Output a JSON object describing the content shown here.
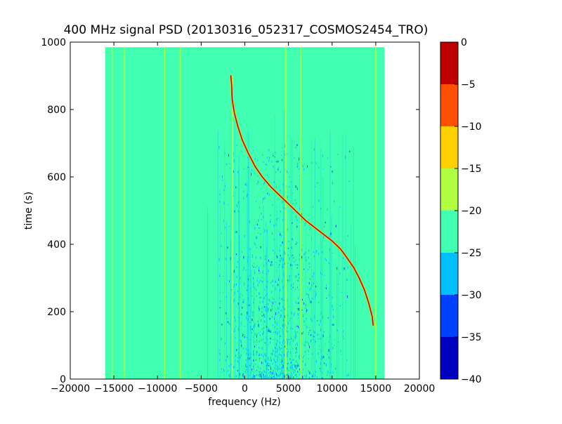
{
  "chart_data": {
    "type": "heatmap",
    "title": "400 MHz signal PSD (20130316_052317_COSMOS2454_TRO)",
    "xlabel": "frequency (Hz)",
    "ylabel": "time (s)",
    "xlim": [
      -20000,
      20000
    ],
    "ylim": [
      0,
      1000
    ],
    "data_extent": {
      "x": [
        -16000,
        16000
      ],
      "y": [
        0,
        985
      ]
    },
    "x_ticks": [
      -20000,
      -15000,
      -10000,
      -5000,
      0,
      5000,
      10000,
      15000,
      20000
    ],
    "x_tick_labels": [
      "−20000",
      "−15000",
      "−10000",
      "−5000",
      "0",
      "5000",
      "10000",
      "15000",
      "20000"
    ],
    "y_ticks": [
      0,
      200,
      400,
      600,
      800,
      1000
    ],
    "y_tick_labels": [
      "0",
      "200",
      "400",
      "600",
      "800",
      "1000"
    ],
    "background_level": -22,
    "colorbar": {
      "levels": [
        -40,
        -35,
        -30,
        -25,
        -20,
        -15,
        -10,
        -5,
        0
      ],
      "tick_labels": [
        "−40",
        "−35",
        "−30",
        "−25",
        "−20",
        "−15",
        "−10",
        "−5",
        "0"
      ],
      "colors": [
        "#0000c0",
        "#0040ff",
        "#00c0ff",
        "#40ffb0",
        "#b0ff40",
        "#ffd000",
        "#ff5000",
        "#c00000"
      ]
    },
    "vertical_lines": [
      {
        "x": -15200,
        "y": [
          0,
          985
        ],
        "level": -18
      },
      {
        "x": -13800,
        "y": [
          0,
          985
        ],
        "level": -18
      },
      {
        "x": -9200,
        "y": [
          0,
          985
        ],
        "level": -17
      },
      {
        "x": -7400,
        "y": [
          0,
          985
        ],
        "level": -19
      },
      {
        "x": -1400,
        "y": [
          0,
          900
        ],
        "level": -17
      },
      {
        "x": 4700,
        "y": [
          0,
          985
        ],
        "level": -18
      },
      {
        "x": 6400,
        "y": [
          0,
          985
        ],
        "level": -19
      },
      {
        "x": 15000,
        "y": [
          0,
          985
        ],
        "level": -16
      }
    ],
    "doppler_trace": {
      "level": -3,
      "points": [
        [
          -1600,
          900
        ],
        [
          -1500,
          870
        ],
        [
          -1450,
          830
        ],
        [
          -1200,
          790
        ],
        [
          -800,
          750
        ],
        [
          -300,
          710
        ],
        [
          400,
          670
        ],
        [
          1200,
          630
        ],
        [
          2000,
          600
        ],
        [
          3000,
          570
        ],
        [
          4000,
          545
        ],
        [
          5000,
          520
        ],
        [
          6000,
          495
        ],
        [
          7000,
          470
        ],
        [
          8000,
          450
        ],
        [
          9000,
          430
        ],
        [
          10000,
          410
        ],
        [
          11000,
          385
        ],
        [
          11700,
          360
        ],
        [
          12500,
          330
        ],
        [
          13100,
          300
        ],
        [
          13700,
          265
        ],
        [
          14200,
          225
        ],
        [
          14600,
          185
        ],
        [
          14700,
          160
        ]
      ]
    },
    "noise_region": {
      "x": [
        -3000,
        12000
      ],
      "y": [
        0,
        700
      ]
    },
    "grid": false
  }
}
